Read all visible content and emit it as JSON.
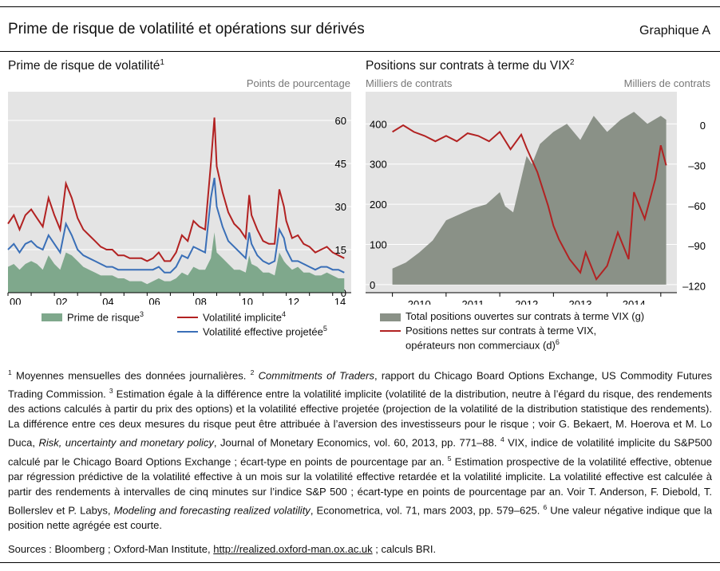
{
  "header": {
    "title": "Prime de risque de volatilité et opérations sur dérivés",
    "figure_label": "Graphique A"
  },
  "left_panel": {
    "title": "Prime de risque de volatilité",
    "title_note": "1",
    "unit": "Points de pourcentage",
    "legend": [
      {
        "label": "Prime de risque",
        "note": "3",
        "color": "#7fa88c"
      },
      {
        "label": "Volatilité implicite",
        "note": "4",
        "color": "#b22222"
      },
      {
        "label": "Volatilité effective projetée",
        "note": "5",
        "color": "#3a6fb7"
      }
    ]
  },
  "right_panel": {
    "title": "Positions sur contrats à terme du VIX",
    "title_note": "2",
    "unit_left": "Milliers de contrats",
    "unit_right": "Milliers de contrats",
    "legend": [
      {
        "label": "Total positions ouvertes sur contrats à terme VIX (g)",
        "color": "#8a9187"
      },
      {
        "label": "Positions nettes sur contrats à terme VIX, opérateurs non commerciaux (d)",
        "label_line1": "Positions nettes sur contrats à terme VIX,",
        "label_line2": "opérateurs non commerciaux (d)",
        "note": "6",
        "color": "#b22222"
      }
    ]
  },
  "chart_data": [
    {
      "type": "line",
      "title": "Prime de risque de volatilité",
      "ylabel": "Points de pourcentage",
      "ylim": [
        0,
        70
      ],
      "yticks": [
        0,
        15,
        30,
        45,
        60
      ],
      "xlim": [
        2000,
        2014.8
      ],
      "xticks": [
        2000,
        2002,
        2004,
        2006,
        2008,
        2010,
        2012,
        2014
      ],
      "xtick_labels": [
        "00",
        "02",
        "04",
        "06",
        "08",
        "10",
        "12",
        "14"
      ],
      "grid": true,
      "x": [
        2000.0,
        2000.25,
        2000.5,
        2000.75,
        2001.0,
        2001.25,
        2001.5,
        2001.75,
        2002.0,
        2002.25,
        2002.5,
        2002.75,
        2003.0,
        2003.25,
        2003.5,
        2003.75,
        2004.0,
        2004.25,
        2004.5,
        2004.75,
        2005.0,
        2005.25,
        2005.5,
        2005.75,
        2006.0,
        2006.25,
        2006.5,
        2006.75,
        2007.0,
        2007.25,
        2007.5,
        2007.75,
        2008.0,
        2008.25,
        2008.5,
        2008.75,
        2008.9,
        2009.0,
        2009.25,
        2009.5,
        2009.75,
        2010.0,
        2010.25,
        2010.4,
        2010.5,
        2010.75,
        2011.0,
        2011.25,
        2011.5,
        2011.7,
        2011.9,
        2012.0,
        2012.25,
        2012.5,
        2012.75,
        2013.0,
        2013.25,
        2013.5,
        2013.75,
        2014.0,
        2014.25,
        2014.5
      ],
      "series": [
        {
          "name": "Volatilité implicite",
          "type": "line",
          "color": "#b22222",
          "values": [
            24,
            27,
            22,
            27,
            29,
            26,
            23,
            33,
            27,
            22,
            38,
            33,
            26,
            22,
            20,
            18,
            16,
            15,
            15,
            13,
            13,
            12,
            12,
            12,
            11,
            12,
            14,
            11,
            11,
            14,
            20,
            18,
            25,
            23,
            22,
            45,
            61,
            44,
            35,
            28,
            24,
            22,
            19,
            34,
            27,
            22,
            18,
            17,
            17,
            36,
            30,
            25,
            19,
            20,
            17,
            16,
            14,
            15,
            16,
            14,
            13,
            12
          ]
        },
        {
          "name": "Volatilité effective projetée",
          "type": "line",
          "color": "#3a6fb7",
          "values": [
            15,
            17,
            14,
            17,
            18,
            16,
            15,
            20,
            17,
            14,
            24,
            20,
            15,
            13,
            12,
            11,
            10,
            9,
            9,
            8,
            8,
            8,
            8,
            8,
            8,
            8,
            9,
            7,
            7,
            9,
            13,
            12,
            16,
            15,
            14,
            33,
            40,
            30,
            23,
            18,
            16,
            14,
            12,
            21,
            17,
            13,
            11,
            10,
            11,
            22,
            19,
            15,
            11,
            11,
            10,
            9,
            8,
            9,
            9,
            8,
            8,
            7
          ]
        },
        {
          "name": "Prime de risque",
          "type": "area",
          "color": "#7fa88c",
          "values": [
            9,
            10,
            8,
            10,
            11,
            10,
            8,
            13,
            10,
            8,
            14,
            13,
            11,
            9,
            8,
            7,
            6,
            6,
            6,
            5,
            5,
            4,
            4,
            4,
            3,
            4,
            5,
            4,
            4,
            5,
            7,
            6,
            9,
            8,
            8,
            12,
            21,
            14,
            12,
            10,
            8,
            8,
            7,
            13,
            10,
            9,
            7,
            7,
            6,
            14,
            11,
            10,
            8,
            9,
            7,
            7,
            6,
            6,
            7,
            6,
            5,
            5
          ]
        }
      ]
    },
    {
      "type": "area",
      "title": "Positions sur contrats à terme du VIX",
      "ylabel_left": "Milliers de contrats",
      "ylabel_right": "Milliers de contrats",
      "ylim_left": [
        -20,
        480
      ],
      "yticks_left": [
        0,
        100,
        200,
        300,
        400
      ],
      "ylim_right": [
        -125,
        25
      ],
      "yticks_right": [
        0,
        -30,
        -60,
        -90,
        -120
      ],
      "xlim": [
        2009.0,
        2014.8
      ],
      "xticks": [
        2010,
        2011,
        2012,
        2013,
        2014
      ],
      "xtick_labels": [
        "2010",
        "2011",
        "2012",
        "2013",
        "2014"
      ],
      "grid": true,
      "series": [
        {
          "name": "Total positions ouvertes sur contrats à terme VIX (g)",
          "axis": "left",
          "type": "area",
          "color": "#8a9187",
          "x": [
            2009.5,
            2009.75,
            2010.0,
            2010.25,
            2010.5,
            2010.75,
            2011.0,
            2011.25,
            2011.5,
            2011.6,
            2011.75,
            2012.0,
            2012.1,
            2012.25,
            2012.5,
            2012.75,
            2013.0,
            2013.25,
            2013.5,
            2013.75,
            2014.0,
            2014.25,
            2014.5,
            2014.6
          ],
          "values": [
            40,
            55,
            80,
            110,
            160,
            175,
            190,
            200,
            230,
            195,
            180,
            320,
            300,
            350,
            380,
            400,
            360,
            420,
            380,
            410,
            430,
            400,
            420,
            410
          ]
        },
        {
          "name": "Positions nettes sur contrats à terme VIX, opérateurs non commerciaux (d)",
          "axis": "right",
          "type": "line",
          "color": "#b22222",
          "x": [
            2009.5,
            2009.7,
            2009.9,
            2010.1,
            2010.3,
            2010.5,
            2010.7,
            2010.9,
            2011.1,
            2011.3,
            2011.5,
            2011.7,
            2011.9,
            2012.0,
            2012.2,
            2012.4,
            2012.5,
            2012.6,
            2012.8,
            2013.0,
            2013.1,
            2013.3,
            2013.5,
            2013.7,
            2013.9,
            2014.0,
            2014.2,
            2014.4,
            2014.5,
            2014.6
          ],
          "values": [
            -5,
            0,
            -5,
            -8,
            -12,
            -8,
            -12,
            -6,
            -8,
            -12,
            -5,
            -18,
            -7,
            -17,
            -35,
            -60,
            -75,
            -85,
            -100,
            -110,
            -95,
            -115,
            -105,
            -80,
            -100,
            -50,
            -70,
            -40,
            -15,
            -30
          ]
        }
      ]
    }
  ],
  "footnotes": {
    "n1": "1",
    "t1": " Moyennes mensuelles des données journalières.  ",
    "n2": "2",
    "t2a": " ",
    "t2_italic": "Commitments of Traders",
    "t2b": ", rapport du Chicago Board Options Exchange, US Commodity Futures Trading Commission.  ",
    "n3": "3",
    "t3a": " Estimation égale à la différence entre la volatilité implicite (volatilité de la distribution, neutre à l’égard du risque, des rendements des actions calculés à partir du prix des options) et la volatilité effective projetée (projection de la volatilité de la distribution statistique des rendements). La différence entre ces deux mesures du risque peut être attribuée à l’aversion des investisseurs pour le risque ; voir G. Bekaert, M. Hoerova et M. Lo Duca, ",
    "t3_italic": "Risk, uncertainty and monetary policy",
    "t3b": ", Journal of Monetary Economics, vol. 60, 2013, pp. 771–88.  ",
    "n4": "4",
    "t4": " VIX, indice de volatilité implicite du S&P500 calculé par le Chicago Board Options Exchange ; écart-type en points de pourcentage par an.  ",
    "n5": "5",
    "t5a": " Estimation prospective de la volatilité effective, obtenue par régression prédictive de la volatilité effective à un mois sur la volatilité effective retardée et la volatilité implicite. La volatilité effective est calculée à partir des rendements à intervalles de cinq minutes sur l’indice S&P 500 ; écart-type en points de pourcentage par an. Voir T. Anderson, F. Diebold, T. Bollerslev et P. Labys, ",
    "t5_italic": "Modeling and forecasting realized volatility",
    "t5b": ", Econometrica, vol.  71, mars 2003, pp. 579–625.  ",
    "n6": "6",
    "t6": " Une valeur négative indique que la position nette agrégée est courte."
  },
  "sources": {
    "prefix": "Sources : Bloomberg ; Oxford-Man Institute, ",
    "link": "http://realized.oxford-man.ox.ac.uk",
    "suffix": " ; calculs BRI."
  }
}
